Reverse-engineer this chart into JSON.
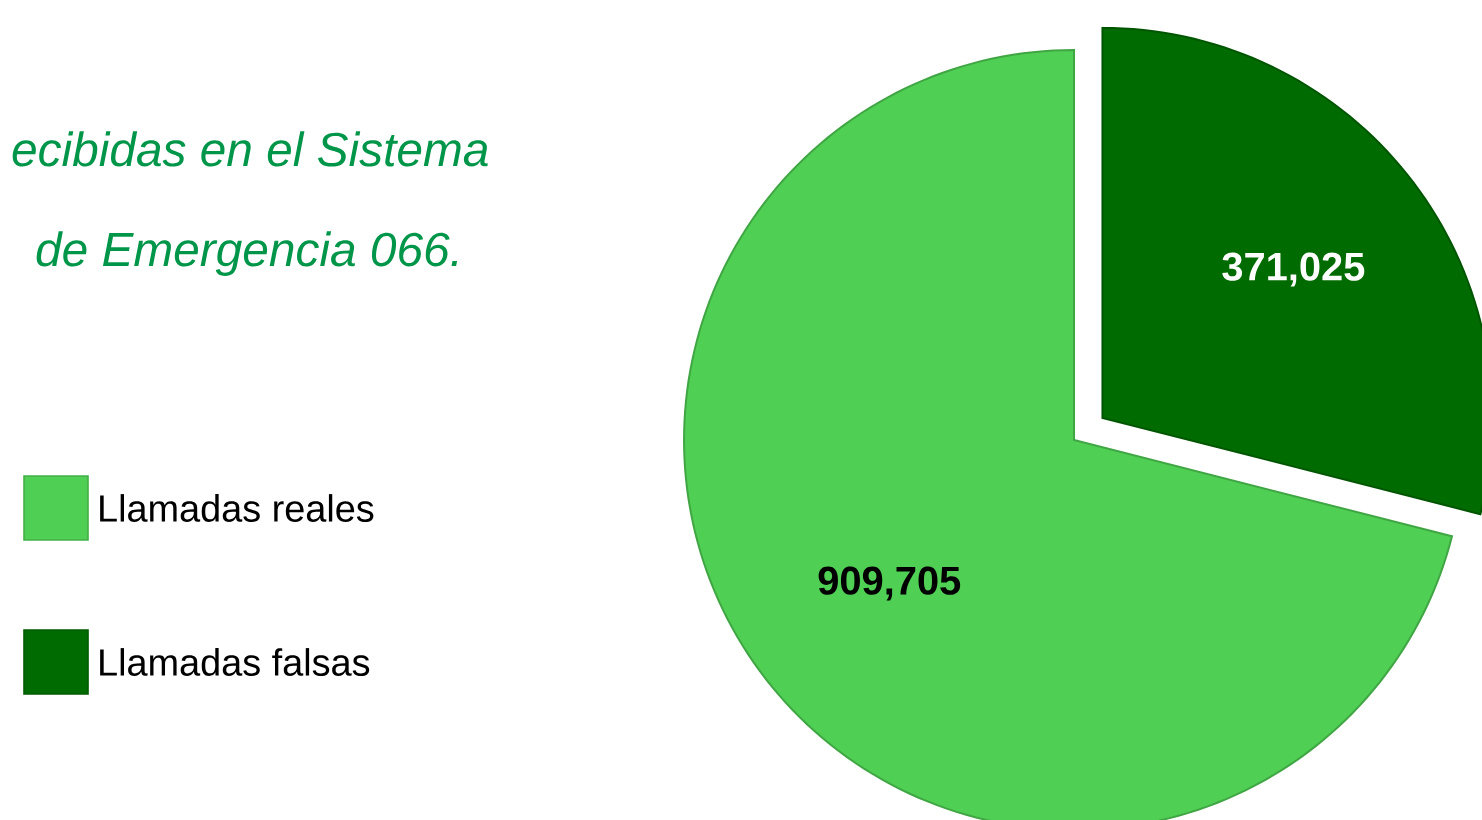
{
  "chart_data": {
    "type": "pie",
    "title": "ecibidas en el Sistema",
    "subtitle": "de Emergencia 066.",
    "categories": [
      "Llamadas reales",
      "Llamadas falsas"
    ],
    "values": [
      909705,
      371025
    ],
    "value_labels": [
      "909,705",
      "371,025"
    ],
    "colors": [
      "#50cf55",
      "#006b00"
    ],
    "legend": "left"
  }
}
